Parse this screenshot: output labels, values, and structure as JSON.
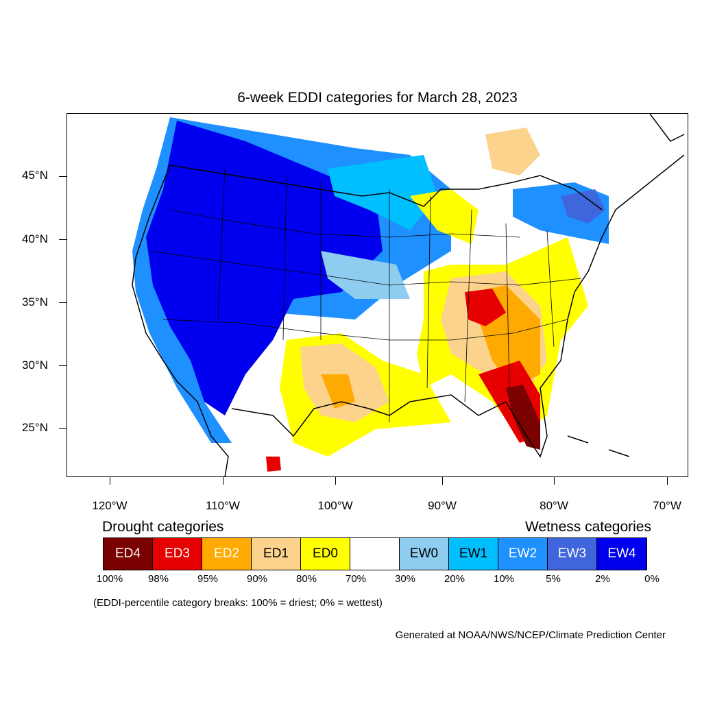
{
  "title": "6-week EDDI categories for March 28, 2023",
  "lat_labels": [
    "45°N",
    "40°N",
    "35°N",
    "30°N",
    "25°N"
  ],
  "lon_labels": [
    "120°W",
    "110°W",
    "100°W",
    "90°W",
    "80°W",
    "70°W"
  ],
  "drought_title": "Drought categories",
  "wetness_title": "Wetness categories",
  "categories": [
    {
      "label": "ED4",
      "color": "#7b0000",
      "text_color": "#ffffff"
    },
    {
      "label": "ED3",
      "color": "#e60000",
      "text_color": "#ffffff"
    },
    {
      "label": "ED2",
      "color": "#ffaa00",
      "text_color": "#ffffff"
    },
    {
      "label": "ED1",
      "color": "#fcd38c",
      "text_color": "#000000"
    },
    {
      "label": "ED0",
      "color": "#ffff00",
      "text_color": "#000000"
    },
    {
      "label": "",
      "color": "#ffffff",
      "text_color": "#000000"
    },
    {
      "label": "EW0",
      "color": "#8ecdf0",
      "text_color": "#000000"
    },
    {
      "label": "EW1",
      "color": "#00bfff",
      "text_color": "#000000"
    },
    {
      "label": "EW2",
      "color": "#1e90ff",
      "text_color": "#ffffff"
    },
    {
      "label": "EW3",
      "color": "#3f66dc",
      "text_color": "#ffffff"
    },
    {
      "label": "EW4",
      "color": "#0000ee",
      "text_color": "#ffffff"
    }
  ],
  "percentiles": [
    "100%",
    "98%",
    "95%",
    "90%",
    "80%",
    "70%",
    "30%",
    "20%",
    "10%",
    "5%",
    "2%",
    "0%"
  ],
  "note": "(EDDI-percentile category breaks: 100% = driest; 0% = wettest)",
  "credit": "Generated at NOAA/NWS/NCEP/Climate Prediction Center"
}
